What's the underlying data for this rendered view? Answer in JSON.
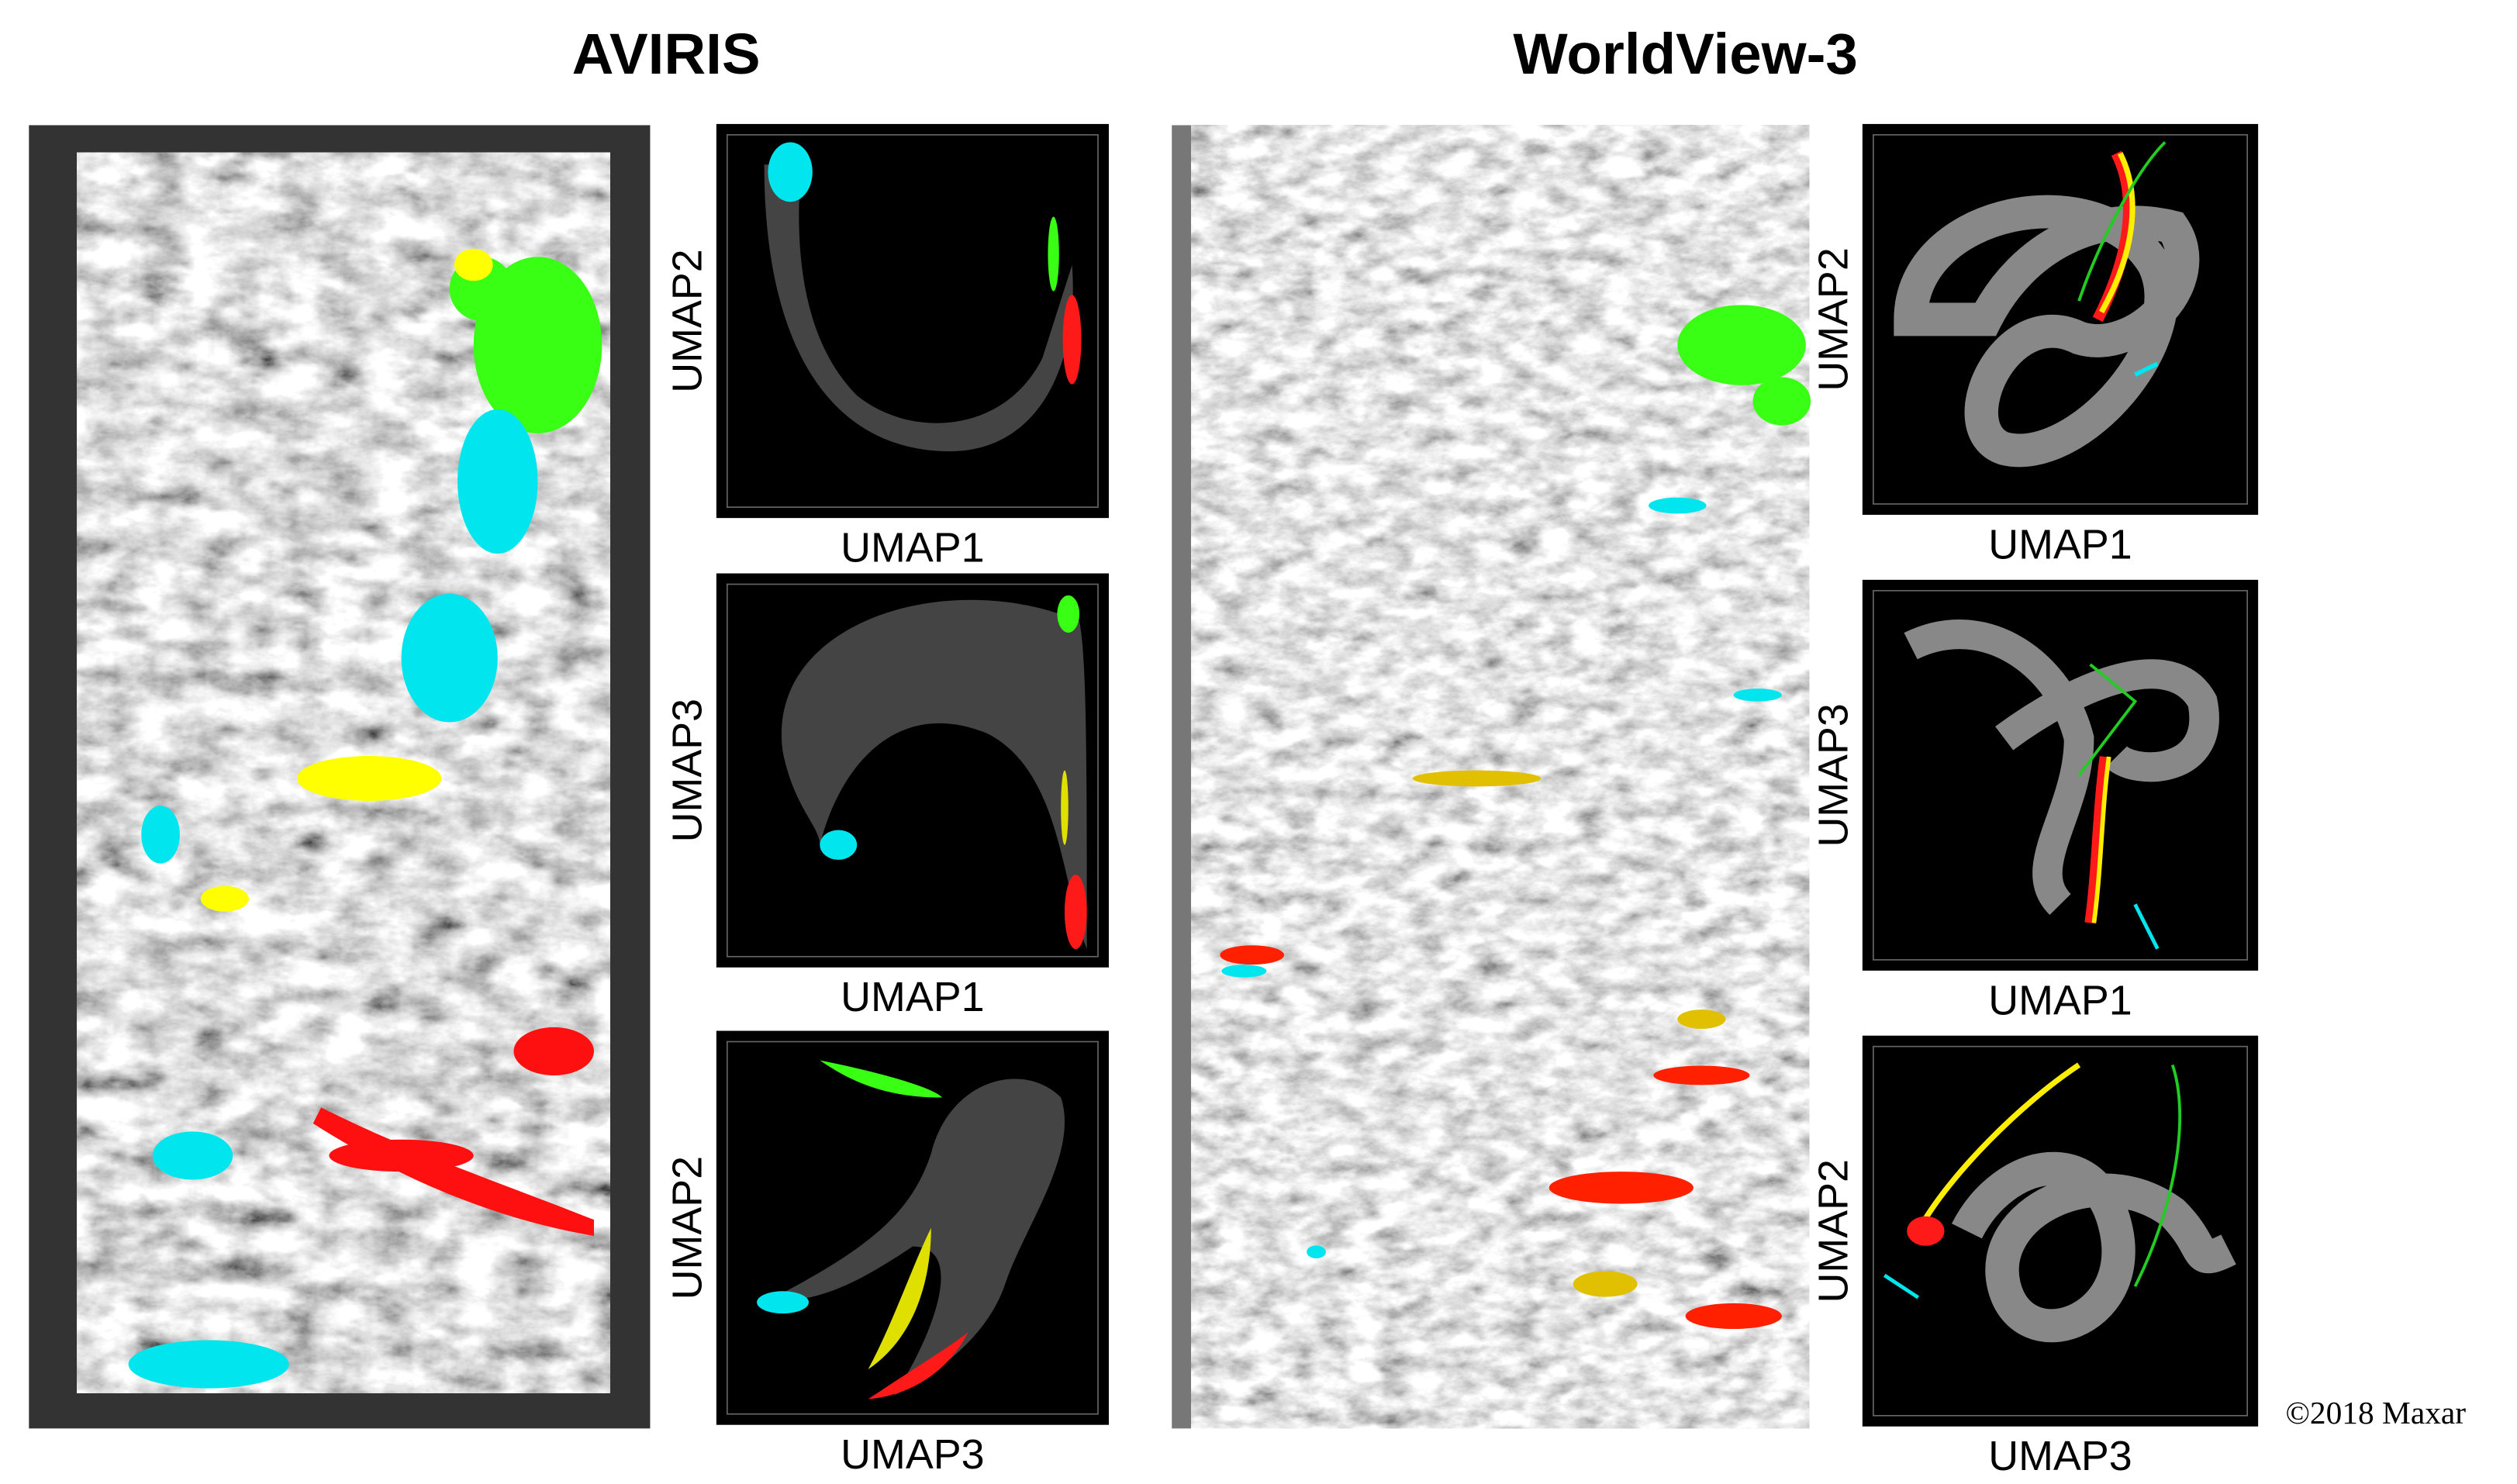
{
  "titles": {
    "aviris": "AVIRIS",
    "worldview": "WorldView-3"
  },
  "aviris_plots": [
    {
      "x_label": "UMAP1",
      "y_label": "UMAP2"
    },
    {
      "x_label": "UMAP1",
      "y_label": "UMAP3"
    },
    {
      "x_label": "UMAP3",
      "y_label": "UMAP2"
    }
  ],
  "worldview_plots": [
    {
      "x_label": "UMAP1",
      "y_label": "UMAP2"
    },
    {
      "x_label": "UMAP1",
      "y_label": "UMAP3"
    },
    {
      "x_label": "UMAP3",
      "y_label": "UMAP2"
    }
  ],
  "credit": "©2018 Maxar"
}
